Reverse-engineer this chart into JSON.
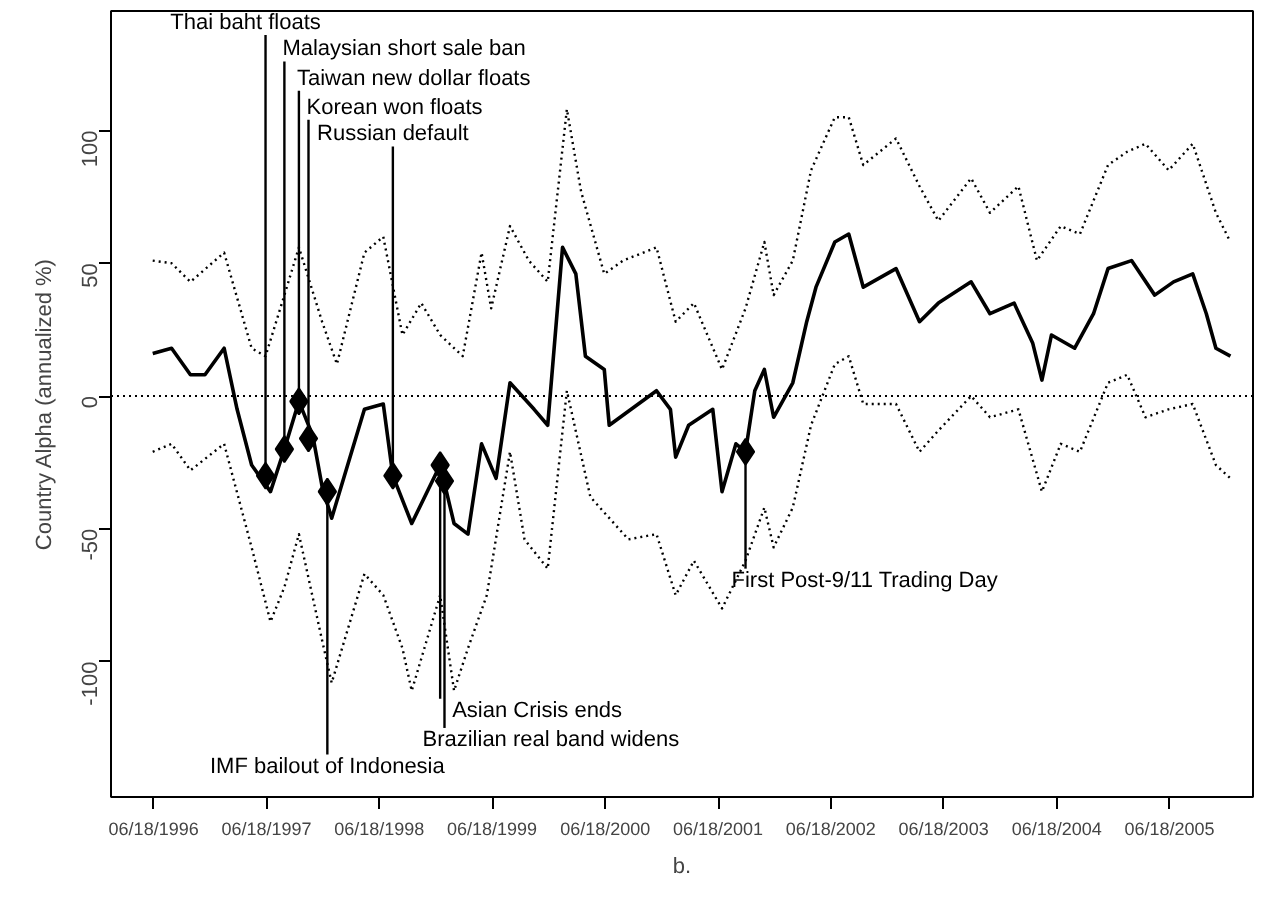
{
  "chart_data": {
    "type": "line",
    "xlabel": "b.",
    "ylabel": "Country Alpha (annualized %)",
    "xlim": [
      "1996-02-01",
      "2006-03-15"
    ],
    "ylim": [
      -151,
      145
    ],
    "yticks": [
      -100,
      -50,
      0,
      50,
      100
    ],
    "xticks": [
      {
        "value": "1996-06-18",
        "label": "06/18/1996"
      },
      {
        "value": "1997-06-18",
        "label": "06/18/1997"
      },
      {
        "value": "1998-06-18",
        "label": "06/18/1998"
      },
      {
        "value": "1999-06-18",
        "label": "06/18/1999"
      },
      {
        "value": "2000-06-18",
        "label": "06/18/2000"
      },
      {
        "value": "2001-06-18",
        "label": "06/18/2001"
      },
      {
        "value": "2002-06-18",
        "label": "06/18/2002"
      },
      {
        "value": "2003-06-18",
        "label": "06/18/2003"
      },
      {
        "value": "2004-06-18",
        "label": "06/18/2004"
      },
      {
        "value": "2005-06-18",
        "label": "06/18/2005"
      }
    ],
    "grid": false,
    "series": [
      {
        "color": "#000000",
        "line_style": "dotted",
        "x": [
          "1996-06-15",
          "1996-08-15",
          "1996-10-15",
          "1997-02-01",
          "1997-05-01",
          "1997-06-15",
          "1997-08-15",
          "1997-10-01",
          "1997-12-15",
          "1998-02-01",
          "1998-05-01",
          "1998-07-01",
          "1998-09-01",
          "1998-11-01",
          "1999-01-01",
          "1999-03-15",
          "1999-05-15",
          "1999-06-15",
          "1999-08-15",
          "1999-10-15",
          "1999-12-15",
          "2000-02-15",
          "2000-04-01",
          "2000-06-15",
          "2000-08-15",
          "2000-12-01",
          "2001-02-01",
          "2001-04-01",
          "2001-07-01",
          "2001-09-15",
          "2001-11-15",
          "2001-12-15",
          "2002-02-15",
          "2002-04-15",
          "2002-07-01",
          "2002-08-15",
          "2002-10-01",
          "2003-01-15",
          "2003-04-01",
          "2003-06-01",
          "2003-09-15",
          "2003-11-15",
          "2004-02-15",
          "2004-04-15",
          "2004-07-01",
          "2004-09-01",
          "2004-12-01",
          "2005-02-01",
          "2005-04-01",
          "2005-06-15",
          "2005-09-01",
          "2005-11-15",
          "2006-01-01"
        ],
        "values": [
          51,
          50,
          43,
          54,
          18,
          15,
          38,
          56,
          28,
          12,
          54,
          60,
          23,
          35,
          23,
          15,
          54,
          33,
          64,
          51,
          43,
          108,
          77,
          46,
          51,
          56,
          28,
          35,
          10,
          33,
          58,
          38,
          51,
          85,
          105,
          105,
          87,
          97,
          79,
          66,
          82,
          69,
          79,
          51,
          64,
          61,
          87,
          92,
          95,
          85,
          95,
          69,
          58
        ]
      },
      {
        "color": "#000000",
        "line_style": "dotted",
        "x": [
          "1996-06-15",
          "1996-08-15",
          "1996-10-15",
          "1997-02-01",
          "1997-05-01",
          "1997-07-01",
          "1997-08-15",
          "1997-10-01",
          "1997-12-15",
          "1998-01-15",
          "1998-05-01",
          "1998-07-01",
          "1998-09-01",
          "1998-10-01",
          "1999-01-01",
          "1999-02-15",
          "1999-04-01",
          "1999-06-01",
          "1999-08-15",
          "1999-10-01",
          "1999-12-15",
          "2000-02-15",
          "2000-05-01",
          "2000-09-01",
          "2000-12-01",
          "2001-02-01",
          "2001-04-01",
          "2001-07-01",
          "2001-09-15",
          "2001-11-15",
          "2001-12-15",
          "2002-02-15",
          "2002-04-15",
          "2002-07-01",
          "2002-08-15",
          "2002-10-01",
          "2003-01-15",
          "2003-04-01",
          "2003-06-01",
          "2003-09-15",
          "2003-11-15",
          "2004-02-15",
          "2004-05-01",
          "2004-07-01",
          "2004-09-01",
          "2004-12-01",
          "2005-02-01",
          "2005-04-01",
          "2005-06-15",
          "2005-09-01",
          "2005-11-15",
          "2006-01-01"
        ],
        "values": [
          -21,
          -18,
          -28,
          -18,
          -57,
          -85,
          -72,
          -52,
          -92,
          -108,
          -67,
          -75,
          -95,
          -111,
          -75,
          -111,
          -95,
          -75,
          -21,
          -54,
          -65,
          2,
          -38,
          -54,
          -52,
          -75,
          -62,
          -80,
          -62,
          -42,
          -57,
          -42,
          -11,
          12,
          15,
          -3,
          -3,
          -21,
          -13,
          0,
          -8,
          -5,
          -36,
          -18,
          -21,
          5,
          8,
          -8,
          -5,
          -3,
          -26,
          -31
        ]
      },
      {
        "color": "#000000",
        "line_style": "solid",
        "x": [
          "1996-06-15",
          "1996-08-15",
          "1996-10-15",
          "1996-12-01",
          "1997-02-01",
          "1997-03-15",
          "1997-05-01",
          "1997-07-01",
          "1997-08-15",
          "1997-10-01",
          "1997-11-15",
          "1997-12-15",
          "1998-01-15",
          "1998-05-01",
          "1998-07-01",
          "1998-08-01",
          "1998-10-01",
          "1999-01-01",
          "1999-02-15",
          "1999-04-01",
          "1999-05-15",
          "1999-07-01",
          "1999-08-15",
          "1999-11-01",
          "1999-12-15",
          "2000-02-01",
          "2000-03-15",
          "2000-04-15",
          "2000-06-15",
          "2000-07-01",
          "2000-12-01",
          "2001-01-15",
          "2001-02-01",
          "2001-03-15",
          "2001-06-01",
          "2001-07-01",
          "2001-08-15",
          "2001-09-15",
          "2001-10-15",
          "2001-11-15",
          "2001-12-15",
          "2002-02-15",
          "2002-04-01",
          "2002-05-01",
          "2002-07-01",
          "2002-08-15",
          "2002-10-01",
          "2003-01-15",
          "2003-04-01",
          "2003-06-01",
          "2003-09-15",
          "2003-11-15",
          "2004-02-01",
          "2004-04-01",
          "2004-05-01",
          "2004-06-01",
          "2004-08-15",
          "2004-10-15",
          "2004-12-01",
          "2005-02-15",
          "2005-05-01",
          "2005-07-01",
          "2005-09-01",
          "2005-10-15",
          "2005-11-15",
          "2006-01-01"
        ],
        "values": [
          16,
          18,
          8,
          8,
          18,
          -5,
          -26,
          -36,
          -20,
          -2,
          -15,
          -34,
          -46,
          -5,
          -3,
          -30,
          -48,
          -26,
          -48,
          -52,
          -18,
          -31,
          5,
          -5,
          -11,
          56,
          46,
          15,
          10,
          -11,
          2,
          -5,
          -23,
          -11,
          -5,
          -36,
          -18,
          -21,
          2,
          10,
          -8,
          5,
          28,
          41,
          58,
          61,
          41,
          48,
          28,
          35,
          43,
          31,
          35,
          20,
          6,
          23,
          18,
          31,
          48,
          51,
          38,
          43,
          46,
          31,
          18,
          15
        ]
      },
      {
        "type": "scatter",
        "color": "#000000",
        "marker": "diamond",
        "x": [
          "1997-06-15",
          "1997-08-15",
          "1997-10-01",
          "1997-11-01",
          "1998-01-01",
          "1998-08-01",
          "1999-01-01",
          "1999-01-15",
          "2001-09-15"
        ],
        "values": [
          -30,
          -20,
          -2,
          -16,
          -36,
          -30,
          -26,
          -32,
          -21
        ]
      }
    ],
    "ref_lines": [
      {
        "axis": "y",
        "value": 0,
        "color": "#000000",
        "line_style": "dotted"
      }
    ],
    "annotations": [
      {
        "text": "Thai baht floats",
        "x": "1997-06-15",
        "y": -30
      },
      {
        "text": "Malaysian short sale ban",
        "x": "1997-08-15",
        "y": -20
      },
      {
        "text": "Taiwan new dollar floats",
        "x": "1997-10-01",
        "y": -2
      },
      {
        "text": "Korean won floats",
        "x": "1997-11-01",
        "y": -16
      },
      {
        "text": "IMF bailout of Indonesia",
        "x": "1998-01-01",
        "y": -36
      },
      {
        "text": "Russian default",
        "x": "1998-08-01",
        "y": -30
      },
      {
        "text": "Asian Crisis ends",
        "x": "1999-01-01",
        "y": -26
      },
      {
        "text": "Brazilian real band widens",
        "x": "1999-01-15",
        "y": -32
      },
      {
        "text": "First Post-9/11 Trading Day",
        "x": "2001-09-15",
        "y": -21
      }
    ]
  }
}
